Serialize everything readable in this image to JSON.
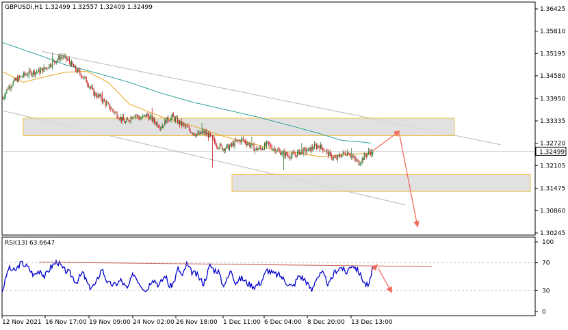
{
  "header": {
    "symbol_line": "GBPUSDi,H1  1.32499  1.32557  1.32409  1.32499",
    "rsi_line": "RSI(13) 63.6647"
  },
  "chart_data": [
    {
      "type": "candlestick",
      "title": "GBPUSDi,H1",
      "ohlc_last": {
        "open": 1.32499,
        "high": 1.32557,
        "low": 1.32409,
        "close": 1.32499
      },
      "current_price_label": "1.32499",
      "ylim": [
        1.30245,
        1.3665
      ],
      "y_ticks": [
        "1.36425",
        "1.35810",
        "1.35195",
        "1.34580",
        "1.33950",
        "1.33335",
        "1.32720",
        "1.32105",
        "1.31475",
        "1.30860",
        "1.30245"
      ],
      "x_ticks": [
        "12 Nov 2021",
        "16 Nov 17:00",
        "19 Nov 09:00",
        "24 Nov 02:00",
        "26 Nov 18:00",
        "1 Dec 11:00",
        "6 Dec 04:00",
        "8 Dec 20:00",
        "13 Dec 13:00"
      ],
      "path_points": [
        [
          0,
          1.3395
        ],
        [
          5,
          1.3425
        ],
        [
          12,
          1.3445
        ],
        [
          20,
          1.346
        ],
        [
          28,
          1.3468
        ],
        [
          34,
          1.347
        ],
        [
          40,
          1.3478
        ],
        [
          46,
          1.3492
        ],
        [
          52,
          1.3505
        ],
        [
          56,
          1.3512
        ],
        [
          62,
          1.35
        ],
        [
          68,
          1.3478
        ],
        [
          74,
          1.3462
        ],
        [
          80,
          1.344
        ],
        [
          86,
          1.341
        ],
        [
          92,
          1.3398
        ],
        [
          98,
          1.338
        ],
        [
          104,
          1.3362
        ],
        [
          110,
          1.3345
        ],
        [
          116,
          1.3328
        ],
        [
          120,
          1.334
        ],
        [
          124,
          1.3352
        ],
        [
          130,
          1.334
        ],
        [
          136,
          1.335
        ],
        [
          142,
          1.3335
        ],
        [
          146,
          1.3325
        ],
        [
          150,
          1.3318
        ],
        [
          154,
          1.3335
        ],
        [
          160,
          1.3345
        ],
        [
          166,
          1.333
        ],
        [
          172,
          1.3318
        ],
        [
          178,
          1.3305
        ],
        [
          184,
          1.3295
        ],
        [
          190,
          1.3302
        ],
        [
          196,
          1.329
        ],
        [
          202,
          1.3268
        ],
        [
          208,
          1.3258
        ],
        [
          214,
          1.3262
        ],
        [
          220,
          1.3275
        ],
        [
          226,
          1.3282
        ],
        [
          232,
          1.327
        ],
        [
          238,
          1.3255
        ],
        [
          244,
          1.3258
        ],
        [
          250,
          1.327
        ],
        [
          254,
          1.326
        ],
        [
          260,
          1.325
        ],
        [
          264,
          1.3245
        ],
        [
          270,
          1.3238
        ],
        [
          276,
          1.324
        ],
        [
          280,
          1.3248
        ],
        [
          288,
          1.3252
        ],
        [
          294,
          1.3262
        ],
        [
          298,
          1.3265
        ],
        [
          302,
          1.3258
        ],
        [
          308,
          1.324
        ],
        [
          314,
          1.3228
        ],
        [
          320,
          1.3242
        ],
        [
          326,
          1.3248
        ],
        [
          330,
          1.3232
        ],
        [
          336,
          1.3218
        ],
        [
          340,
          1.3232
        ],
        [
          344,
          1.3245
        ],
        [
          349,
          1.325
        ]
      ],
      "ma_slow_points": [
        [
          0,
          1.355
        ],
        [
          30,
          1.352
        ],
        [
          60,
          1.3488
        ],
        [
          90,
          1.3465
        ],
        [
          120,
          1.344
        ],
        [
          150,
          1.341
        ],
        [
          180,
          1.3385
        ],
        [
          210,
          1.3365
        ],
        [
          240,
          1.3345
        ],
        [
          270,
          1.3322
        ],
        [
          300,
          1.3298
        ],
        [
          320,
          1.328
        ],
        [
          340,
          1.3275
        ],
        [
          349,
          1.3272
        ]
      ],
      "ma_fast_points": [
        [
          0,
          1.347
        ],
        [
          20,
          1.344
        ],
        [
          40,
          1.3455
        ],
        [
          60,
          1.3468
        ],
        [
          80,
          1.347
        ],
        [
          100,
          1.344
        ],
        [
          120,
          1.338
        ],
        [
          150,
          1.3345
        ],
        [
          180,
          1.332
        ],
        [
          210,
          1.329
        ],
        [
          240,
          1.3268
        ],
        [
          260,
          1.325
        ],
        [
          280,
          1.3245
        ],
        [
          300,
          1.3235
        ],
        [
          320,
          1.324
        ],
        [
          349,
          1.3245
        ]
      ],
      "support_zone": [
        1.3139,
        1.3186
      ],
      "resistance_zone": [
        1.3293,
        1.3341
      ],
      "channel_upper": [
        [
          38,
          1.3525
        ],
        [
          470,
          1.3268
        ]
      ],
      "channel_lower": [
        [
          0,
          1.3362
        ],
        [
          380,
          1.3102
        ]
      ],
      "projection": [
        [
          349,
          1.325
        ],
        [
          368,
          1.3305
        ],
        [
          400,
          1.3043
        ]
      ]
    },
    {
      "type": "line",
      "title": "RSI(13)",
      "last_value": 63.6647,
      "ylim": [
        0,
        100
      ],
      "y_ticks": [
        "100",
        "70",
        "30",
        "0"
      ],
      "levels": [
        70,
        30
      ],
      "path_points": [
        [
          0,
          28
        ],
        [
          6,
          62
        ],
        [
          12,
          58
        ],
        [
          18,
          70
        ],
        [
          24,
          64
        ],
        [
          30,
          52
        ],
        [
          36,
          60
        ],
        [
          40,
          50
        ],
        [
          46,
          64
        ],
        [
          52,
          72
        ],
        [
          58,
          60
        ],
        [
          64,
          55
        ],
        [
          70,
          42
        ],
        [
          76,
          56
        ],
        [
          82,
          35
        ],
        [
          88,
          38
        ],
        [
          94,
          62
        ],
        [
          100,
          40
        ],
        [
          106,
          38
        ],
        [
          112,
          45
        ],
        [
          118,
          32
        ],
        [
          124,
          55
        ],
        [
          130,
          40
        ],
        [
          136,
          30
        ],
        [
          142,
          48
        ],
        [
          148,
          38
        ],
        [
          154,
          52
        ],
        [
          158,
          35
        ],
        [
          162,
          42
        ],
        [
          166,
          62
        ],
        [
          170,
          50
        ],
        [
          174,
          68
        ],
        [
          178,
          58
        ],
        [
          184,
          52
        ],
        [
          190,
          40
        ],
        [
          196,
          66
        ],
        [
          200,
          60
        ],
        [
          204,
          58
        ],
        [
          208,
          38
        ],
        [
          212,
          45
        ],
        [
          216,
          60
        ],
        [
          220,
          42
        ],
        [
          226,
          48
        ],
        [
          232,
          40
        ],
        [
          238,
          36
        ],
        [
          244,
          42
        ],
        [
          250,
          60
        ],
        [
          256,
          54
        ],
        [
          262,
          52
        ],
        [
          268,
          42
        ],
        [
          274,
          35
        ],
        [
          280,
          52
        ],
        [
          286,
          45
        ],
        [
          292,
          30
        ],
        [
          296,
          48
        ],
        [
          302,
          55
        ],
        [
          308,
          38
        ],
        [
          314,
          58
        ],
        [
          320,
          64
        ],
        [
          324,
          55
        ],
        [
          330,
          68
        ],
        [
          336,
          58
        ],
        [
          342,
          40
        ],
        [
          346,
          36
        ],
        [
          349,
          63.66
        ]
      ],
      "trendline": [
        [
          35,
          71
        ],
        [
          405,
          64.5
        ]
      ],
      "projection": [
        [
          349,
          63.66
        ],
        [
          362,
          28
        ]
      ]
    }
  ],
  "colors": {
    "bull": "#2e7d32",
    "bear": "#c62828",
    "ma_slow": "#2aa198",
    "ma_fast": "#e8a317",
    "zone_fill": "#dcdcdc",
    "zone_border": "#f0c24b",
    "channel": "#b8b8b8",
    "arrow": "#f26b5b",
    "rsi_line": "#0000cc",
    "rsi_trend": "#c85a50",
    "grid": "#c8c8c8",
    "price_box": "#000000"
  }
}
